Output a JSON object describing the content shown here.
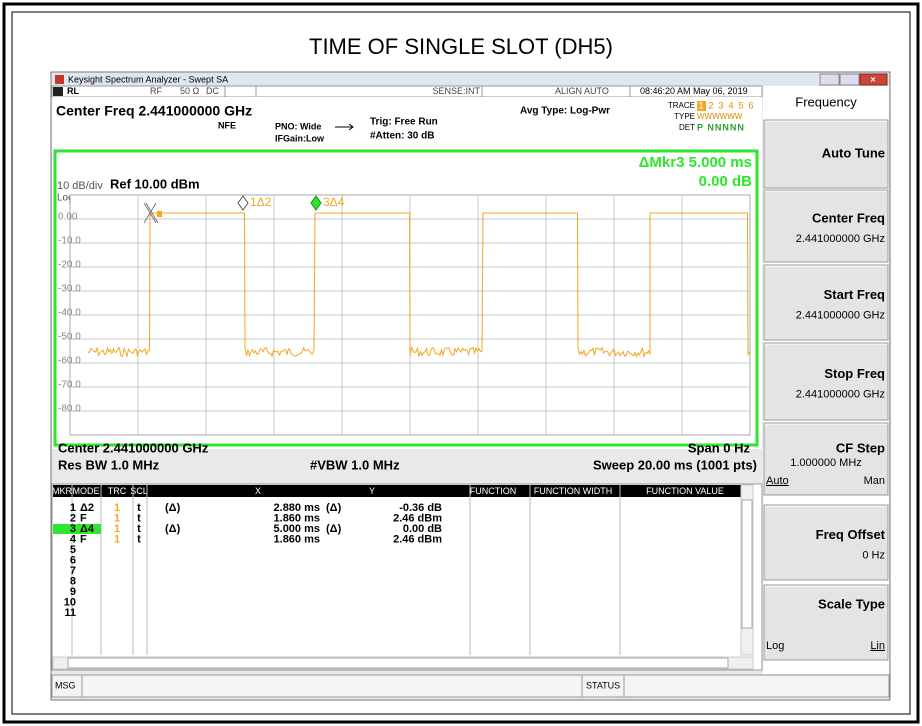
{
  "title": "TIME OF SINGLE SLOT (DH5)",
  "window": {
    "title": "Keysight Spectrum Analyzer - Swept SA"
  },
  "status_bar": {
    "rl": "RL",
    "rf": "RF",
    "impedance": "50 Ω",
    "coupling": "DC",
    "sense": "SENSE:INT",
    "align": "ALIGN AUTO",
    "timestamp": "08:46:20 AM May 06, 2019"
  },
  "header": {
    "center_freq": "Center Freq 2.441000000 GHz",
    "nfe": "NFE",
    "pno": "PNO: Wide",
    "ifgain": "IFGain:Low",
    "trig": "Trig: Free Run",
    "atten": "#Atten: 30 dB",
    "avg_type": "Avg Type: Log-Pwr",
    "trace_label": "TRACE",
    "trace_numbers": [
      "1",
      "2",
      "3",
      "4",
      "5",
      "6"
    ],
    "type_label": "TYPE",
    "type_value": "WWWWWW",
    "det_label": "DET",
    "det_value": "P NNNNN"
  },
  "plot": {
    "scale": "10 dB/div",
    "ref": "Ref 10.00 dBm",
    "log": "Log",
    "marker_readout": "ΔMkr3 5.000 ms",
    "marker_value": "0.00 dB",
    "y_labels": [
      "0.00",
      "-10.0",
      "-20.0",
      "-30.0",
      "-40.0",
      "-50.0",
      "-60.0",
      "-70.0",
      "-80.0"
    ],
    "marker_1": "1Δ2",
    "marker_3": "3Δ4",
    "center": "Center 2.441000000 GHz",
    "span": "Span 0 Hz",
    "res_bw": "Res BW 1.0 MHz",
    "vbw": "#VBW 1.0 MHz",
    "sweep": "Sweep  20.00 ms (1001 pts)"
  },
  "marker_table": {
    "headers": [
      "MKR",
      "MODE",
      "TRC",
      "SCL",
      "X",
      "Y",
      "FUNCTION",
      "FUNCTION WIDTH",
      "FUNCTION VALUE"
    ],
    "rows": [
      {
        "mkr": "1",
        "mode": "Δ2",
        "trc": "1",
        "scl": "t",
        "x_delta": "(Δ)",
        "x": "2.880 ms",
        "y_delta": "(Δ)",
        "y": "-0.36 dB"
      },
      {
        "mkr": "2",
        "mode": "F",
        "trc": "1",
        "scl": "t",
        "x": "1.860 ms",
        "y": "2.46 dBm"
      },
      {
        "mkr": "3",
        "mode": "Δ4",
        "trc": "1",
        "scl": "t",
        "x_delta": "(Δ)",
        "x": "5.000 ms",
        "y_delta": "(Δ)",
        "y": "0.00 dB"
      },
      {
        "mkr": "4",
        "mode": "F",
        "trc": "1",
        "scl": "t",
        "x": "1.860 ms",
        "y": "2.46 dBm"
      },
      {
        "mkr": "5"
      },
      {
        "mkr": "6"
      },
      {
        "mkr": "7"
      },
      {
        "mkr": "8"
      },
      {
        "mkr": "9"
      },
      {
        "mkr": "10"
      },
      {
        "mkr": "11"
      }
    ]
  },
  "msg_bar": {
    "msg": "MSG",
    "status": "STATUS"
  },
  "softkeys": {
    "menu": "Frequency",
    "keys": [
      {
        "label": "Auto Tune"
      },
      {
        "label": "Center Freq",
        "value": "2.441000000 GHz"
      },
      {
        "label": "Start Freq",
        "value": "2.441000000 GHz"
      },
      {
        "label": "Stop Freq",
        "value": "2.441000000 GHz"
      },
      {
        "label": "CF Step",
        "value": "1.000000 MHz",
        "options": [
          "Auto",
          "Man"
        ]
      },
      {
        "label": "Freq Offset",
        "value": "0 Hz"
      },
      {
        "label": "Scale Type",
        "options": [
          "Log",
          "Lin"
        ]
      }
    ]
  }
}
